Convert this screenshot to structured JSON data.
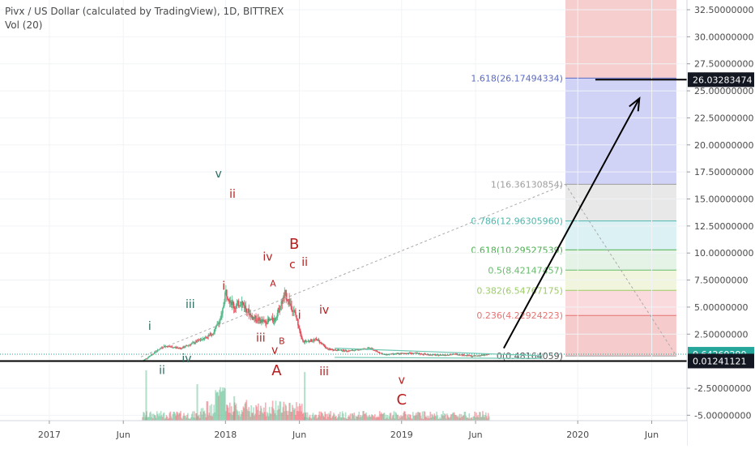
{
  "header": {
    "title": "Pivx / US Dollar (calculated by TradingView), 1D, BITTREX",
    "indicator": "Vol (20)"
  },
  "colors": {
    "up": "#53b987",
    "down": "#eb4d5c",
    "wave_green": "#2a6b5f",
    "wave_red": "#b71c1c",
    "trendline": "#6fc7b2",
    "axis_text": "#4a4a4a",
    "price_badge": "#26a69a",
    "level_badge": "#131722"
  },
  "chart_data": {
    "type": "candlestick",
    "title": "Pivx / US Dollar (calculated by TradingView), 1D, BITTREX",
    "ylim": [
      -5.5,
      33.4
    ],
    "xlim": [
      2016.72,
      2020.62
    ],
    "y_ticks": [
      "32.50000000",
      "30.00000000",
      "27.50000000",
      "25.00000000",
      "22.50000000",
      "20.00000000",
      "17.50000000",
      "15.00000000",
      "12.50000000",
      "10.00000000",
      "7.50000000",
      "5.00000000",
      "2.50000000",
      "-2.50000000",
      "-5.00000000"
    ],
    "y_tick_values": [
      32.5,
      30,
      27.5,
      25,
      22.5,
      20,
      17.5,
      15,
      12.5,
      10,
      7.5,
      5,
      2.5,
      -2.5,
      -5
    ],
    "x_ticks": [
      "2017",
      "Jun",
      "2018",
      "Jun",
      "2019",
      "Jun",
      "2020",
      "Jun"
    ],
    "x_tick_values": [
      2017.0,
      2017.42,
      2018.0,
      2018.42,
      2019.0,
      2019.42,
      2020.0,
      2020.42
    ],
    "price_path": [
      [
        2017.0,
        0.01
      ],
      [
        2017.45,
        0.01
      ],
      [
        2017.53,
        0.02
      ],
      [
        2017.58,
        0.6
      ],
      [
        2017.65,
        1.4
      ],
      [
        2017.75,
        1.2
      ],
      [
        2017.85,
        1.9
      ],
      [
        2017.93,
        2.6
      ],
      [
        2017.98,
        4.2
      ],
      [
        2018.0,
        6.5
      ],
      [
        2018.05,
        5.0
      ],
      [
        2018.09,
        5.5
      ],
      [
        2018.15,
        4.1
      ],
      [
        2018.22,
        3.6
      ],
      [
        2018.28,
        3.9
      ],
      [
        2018.34,
        6.2
      ],
      [
        2018.4,
        4.2
      ],
      [
        2018.44,
        1.8
      ],
      [
        2018.52,
        2.0
      ],
      [
        2018.58,
        1.1
      ],
      [
        2018.7,
        0.95
      ],
      [
        2018.82,
        1.2
      ],
      [
        2018.9,
        0.6
      ],
      [
        2019.05,
        0.75
      ],
      [
        2019.2,
        0.55
      ],
      [
        2019.32,
        0.65
      ],
      [
        2019.4,
        0.45
      ],
      [
        2019.5,
        0.62
      ]
    ],
    "fib_levels": [
      {
        "label": "0(0.48164059)",
        "value": 0.48164059,
        "fill": "#f4c2c2"
      },
      {
        "label": "0.236(4.22924223)",
        "value": 4.22924223,
        "fill": "#f9d3d6"
      },
      {
        "label": "0.382(6.54767175)",
        "value": 6.54767175,
        "fill": "#eef3d8"
      },
      {
        "label": "0.5(8.42147457)",
        "value": 8.42147457,
        "fill": "#dff1e2"
      },
      {
        "label": "0.618(10.29527539)",
        "value": 10.29527539,
        "fill": "#d6eff2"
      },
      {
        "label": "0.786(12.96305960)",
        "value": 12.9630596,
        "fill": "#e4e4e4"
      },
      {
        "label": "1(16.36130854)",
        "value": 16.36130854,
        "fill": "#c8cbf4"
      },
      {
        "label": "1.618(26.17494334)",
        "value": 26.17494334,
        "fill": "#f4c6c6"
      }
    ],
    "fib_top_value": 33.4,
    "current_price": "0.64269290",
    "current_price_value": 0.6426929,
    "level_price": "0.01241121",
    "level_price_value": 0.01241121,
    "target_price": "26.03283474",
    "target_price_value": 26.03283474,
    "wave_labels": [
      {
        "text": "i",
        "x": 2017.57,
        "y": 2.9,
        "color": "green"
      },
      {
        "text": "ii",
        "x": 2017.64,
        "y": -1.2,
        "color": "green"
      },
      {
        "text": "iii",
        "x": 2017.8,
        "y": 4.9,
        "color": "green"
      },
      {
        "text": "iv",
        "x": 2017.78,
        "y": -0.1,
        "color": "green"
      },
      {
        "text": "v",
        "x": 2017.96,
        "y": 17.0,
        "color": "green"
      },
      {
        "text": "ii",
        "x": 2018.04,
        "y": 15.1,
        "color": "red"
      },
      {
        "text": "i",
        "x": 2017.99,
        "y": 6.6,
        "color": "red"
      },
      {
        "text": "iii",
        "x": 2018.2,
        "y": 1.8,
        "color": "red"
      },
      {
        "text": "iv",
        "x": 2018.24,
        "y": 9.3,
        "color": "red"
      },
      {
        "text": "A",
        "x": 2018.27,
        "y": 6.9,
        "color": "red"
      },
      {
        "text": "v",
        "x": 2018.28,
        "y": 0.7,
        "color": "red"
      },
      {
        "text": "B",
        "x": 2018.32,
        "y": 1.6,
        "color": "red"
      },
      {
        "text": "A",
        "x": 2018.29,
        "y": -1.3,
        "color": "red"
      },
      {
        "text": "B",
        "x": 2018.39,
        "y": 10.4,
        "color": "red"
      },
      {
        "text": "c",
        "x": 2018.38,
        "y": 8.6,
        "color": "red"
      },
      {
        "text": "ii",
        "x": 2018.45,
        "y": 8.8,
        "color": "red"
      },
      {
        "text": "i",
        "x": 2018.42,
        "y": 3.9,
        "color": "red"
      },
      {
        "text": "iv",
        "x": 2018.56,
        "y": 4.4,
        "color": "red"
      },
      {
        "text": "iii",
        "x": 2018.56,
        "y": -1.3,
        "color": "red"
      },
      {
        "text": "v",
        "x": 2019.0,
        "y": -2.1,
        "color": "red"
      },
      {
        "text": "C",
        "x": 2019.0,
        "y": -4.0,
        "color": "red"
      }
    ]
  }
}
